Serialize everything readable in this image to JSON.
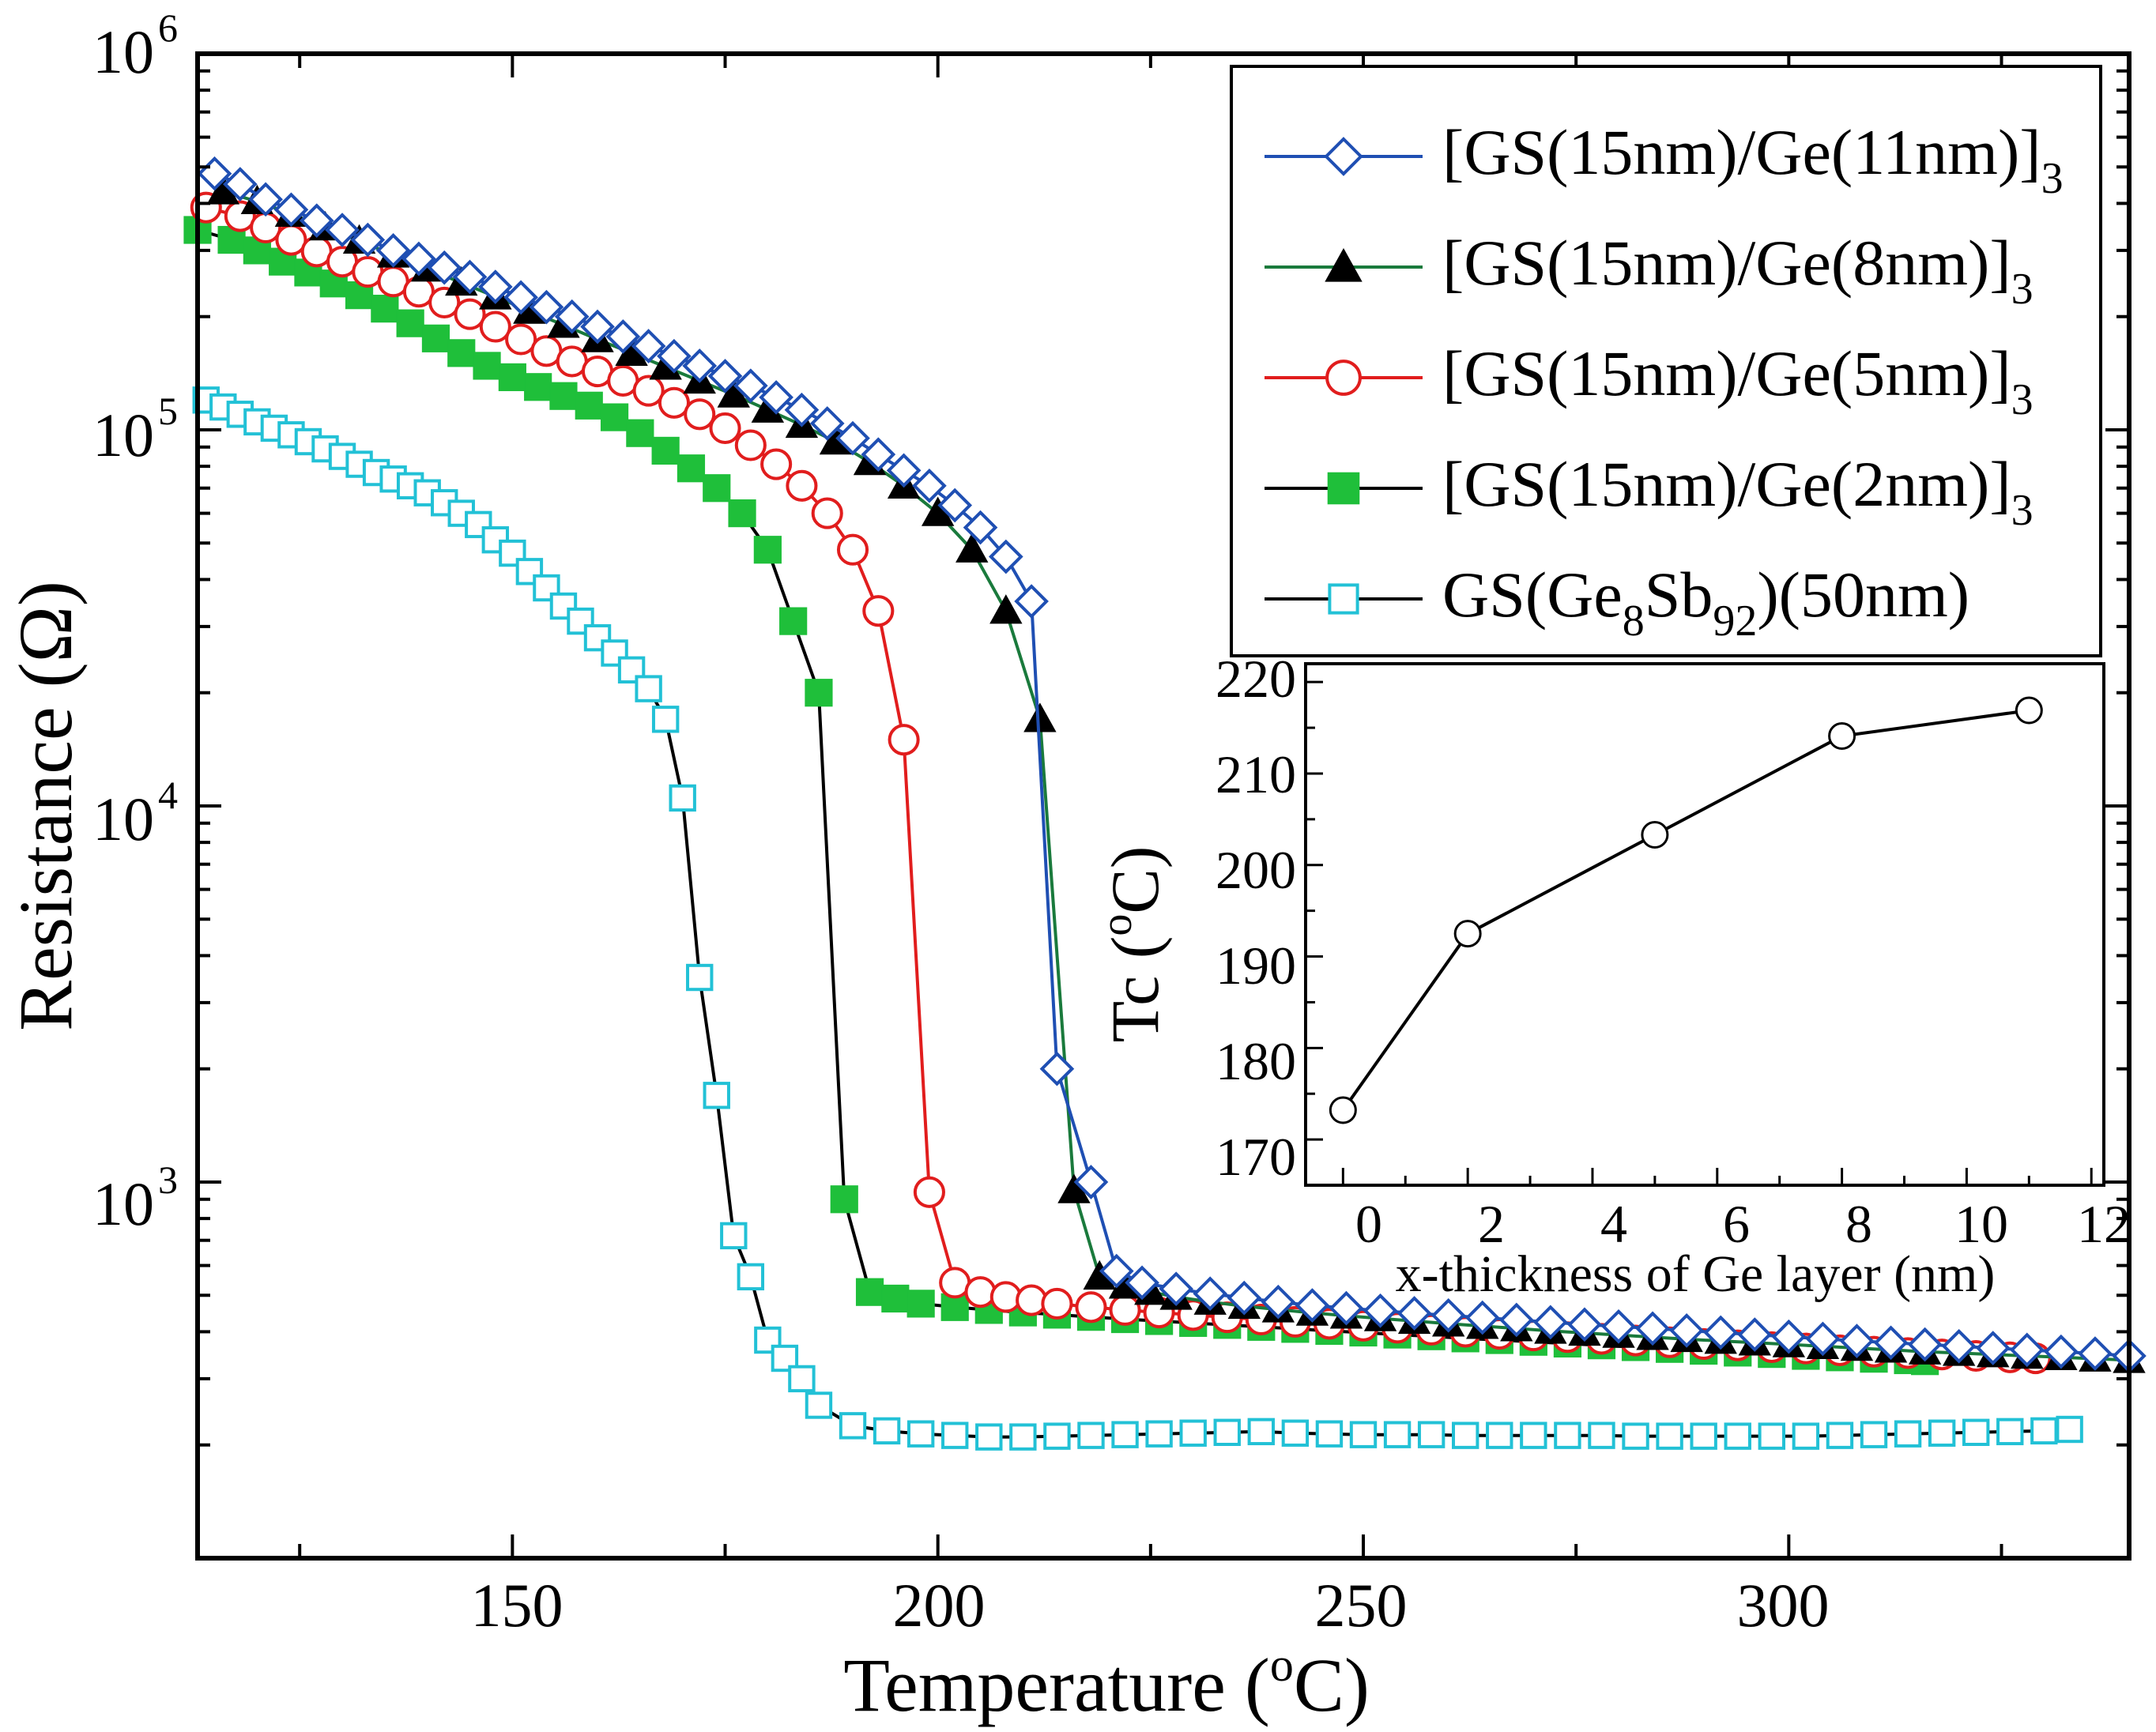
{
  "chart_data": {
    "type": "line",
    "xlabel_text": "Temperature (",
    "xlabel_sup": "o",
    "xlabel_unit": "C)",
    "ylabel": "Resistance (Ω)",
    "yscale": "log",
    "xlim": [
      113,
      340
    ],
    "ylim": [
      100,
      1000000
    ],
    "x_ticks": [
      "150",
      "200",
      "250",
      "300"
    ],
    "y_ticks": [
      {
        "base": "10",
        "exp": "3"
      },
      {
        "base": "10",
        "exp": "4"
      },
      {
        "base": "10",
        "exp": "5"
      },
      {
        "base": "10",
        "exp": "6"
      }
    ],
    "legend_position": "top-right",
    "series": [
      {
        "name": "[GS(15nm)/Ge(11nm)]3",
        "legend_main": "[GS(15nm)/Ge(11nm)]",
        "legend_sub": "3",
        "line_color": "#1f4fb3",
        "marker": "diamond-open",
        "marker_color": "#1f4fb3",
        "x": [
          115,
          118,
          121,
          124,
          127,
          130,
          133,
          136,
          139,
          142,
          145,
          148,
          151,
          154,
          157,
          160,
          163,
          166,
          169,
          172,
          175,
          178,
          181,
          184,
          187,
          190,
          193,
          196,
          199,
          202,
          205,
          208,
          211,
          214,
          218,
          221,
          224,
          228,
          232,
          236,
          240,
          244,
          248,
          252,
          256,
          260,
          264,
          268,
          272,
          276,
          280,
          284,
          288,
          292,
          296,
          300,
          304,
          308,
          312,
          316,
          320,
          324,
          328,
          332,
          336,
          340
        ],
        "y": [
          480000,
          450000,
          410000,
          385000,
          360000,
          340000,
          320000,
          300000,
          285000,
          270000,
          255000,
          240000,
          225000,
          212000,
          200000,
          188000,
          177000,
          167000,
          157000,
          148000,
          139000,
          131000,
          122000,
          113000,
          104000,
          95000,
          86000,
          78000,
          71000,
          63000,
          55000,
          46000,
          35000,
          2000,
          1000,
          580,
          540,
          520,
          505,
          492,
          480,
          470,
          462,
          455,
          448,
          442,
          436,
          430,
          424,
          418,
          413,
          408,
          403,
          398,
          393,
          388,
          383,
          378,
          374,
          370,
          366,
          362,
          358,
          354,
          350,
          345
        ]
      },
      {
        "name": "[GS(15nm)/Ge(8nm)]3",
        "legend_main": "[GS(15nm)/Ge(8nm)]",
        "legend_sub": "3",
        "line_color": "#1a7a3c",
        "marker": "triangle-filled",
        "marker_color": "#000000",
        "x": [
          116,
          120,
          124,
          128,
          132,
          136,
          140,
          144,
          148,
          152,
          156,
          160,
          164,
          168,
          172,
          176,
          180,
          184,
          188,
          192,
          196,
          200,
          204,
          208,
          212,
          216,
          219,
          222,
          225,
          228,
          232,
          236,
          240,
          244,
          248,
          252,
          256,
          260,
          264,
          268,
          272,
          276,
          280,
          284,
          288,
          292,
          296,
          300,
          304,
          308,
          312,
          316,
          320,
          324,
          328,
          332,
          336,
          340
        ],
        "y": [
          430000,
          405000,
          375000,
          345000,
          318000,
          292000,
          268000,
          246000,
          226000,
          207000,
          190000,
          174000,
          160000,
          147000,
          135000,
          124000,
          113000,
          103000,
          93000,
          82000,
          71000,
          60000,
          48000,
          33000,
          17000,
          950,
          560,
          530,
          510,
          495,
          480,
          468,
          458,
          449,
          441,
          434,
          427,
          420,
          414,
          408,
          402,
          397,
          392,
          387,
          382,
          378,
          374,
          370,
          366,
          362,
          358,
          354,
          351,
          348,
          345,
          342,
          339,
          336
        ]
      },
      {
        "name": "[GS(15nm)/Ge(5nm)]3",
        "legend_main": "[GS(15nm)/Ge(5nm)]",
        "legend_sub": "3",
        "line_color": "#e11d1d",
        "marker": "circle-open",
        "marker_color": "#e11d1d",
        "x": [
          114,
          118,
          121,
          124,
          127,
          130,
          133,
          136,
          139,
          142,
          145,
          148,
          151,
          154,
          157,
          160,
          163,
          166,
          169,
          172,
          175,
          178,
          181,
          184,
          187,
          190,
          193,
          196,
          199,
          202,
          205,
          208,
          211,
          214,
          218,
          222,
          226,
          230,
          234,
          238,
          242,
          246,
          250,
          254,
          258,
          262,
          266,
          270,
          274,
          278,
          282,
          286,
          290,
          294,
          298,
          302,
          306,
          310,
          314,
          318,
          322,
          326,
          329
        ],
        "y": [
          390000,
          370000,
          345000,
          320000,
          298000,
          280000,
          263000,
          248000,
          233000,
          218000,
          203000,
          188000,
          174000,
          162000,
          152000,
          143000,
          135000,
          127000,
          118000,
          110000,
          101000,
          91000,
          81000,
          71000,
          60000,
          48000,
          33000,
          15000,
          940,
          540,
          510,
          495,
          485,
          475,
          465,
          457,
          450,
          443,
          437,
          431,
          425,
          420,
          415,
          410,
          405,
          400,
          395,
          391,
          387,
          383,
          379,
          375,
          371,
          368,
          364,
          361,
          357,
          354,
          351,
          348,
          345,
          342,
          340
        ]
      },
      {
        "name": "[GS(15nm)/Ge(2nm)]3",
        "legend_main": "[GS(15nm)/Ge(2nm)]",
        "legend_sub": "3",
        "line_color": "#000000",
        "marker": "square-filled",
        "marker_color": "#1fbf3a",
        "x": [
          113,
          117,
          120,
          123,
          126,
          129,
          132,
          135,
          138,
          141,
          144,
          147,
          150,
          153,
          156,
          159,
          162,
          165,
          168,
          171,
          174,
          177,
          180,
          183,
          186,
          189,
          192,
          195,
          198,
          202,
          206,
          210,
          214,
          218,
          222,
          226,
          230,
          234,
          238,
          242,
          246,
          250,
          254,
          258,
          262,
          266,
          270,
          274,
          278,
          282,
          286,
          290,
          294,
          298,
          302,
          306,
          310,
          314,
          316
        ],
        "y": [
          340000,
          320000,
          300000,
          280000,
          262000,
          245000,
          228000,
          210000,
          192000,
          175000,
          160000,
          148000,
          138000,
          130000,
          123000,
          116000,
          108000,
          98000,
          88000,
          79000,
          70000,
          60000,
          48000,
          31000,
          20000,
          900,
          510,
          490,
          475,
          465,
          457,
          450,
          444,
          438,
          432,
          427,
          422,
          417,
          412,
          407,
          402,
          398,
          393,
          389,
          384,
          380,
          376,
          372,
          368,
          364,
          360,
          356,
          352,
          349,
          345,
          342,
          339,
          336,
          334
        ]
      },
      {
        "name": "GS(Ge8Sb92)(50nm)",
        "legend_prefix": "GS(Ge",
        "legend_sub1": "8",
        "legend_mid": "Sb",
        "legend_sub2": "92",
        "legend_suffix": ")(50nm)",
        "line_color": "#000000",
        "marker": "square-open",
        "marker_color": "#22c1d6",
        "x": [
          114,
          116,
          118,
          120,
          122,
          124,
          126,
          128,
          130,
          132,
          134,
          136,
          138,
          140,
          142,
          144,
          146,
          148,
          150,
          152,
          154,
          156,
          158,
          160,
          162,
          164,
          166,
          168,
          170,
          172,
          174,
          176,
          178,
          180,
          182,
          184,
          186,
          190,
          194,
          198,
          202,
          206,
          210,
          214,
          218,
          222,
          226,
          230,
          234,
          238,
          242,
          246,
          250,
          254,
          258,
          262,
          266,
          270,
          274,
          278,
          282,
          286,
          290,
          294,
          298,
          302,
          306,
          310,
          314,
          318,
          322,
          326,
          330,
          333
        ],
        "y": [
          120000,
          115000,
          110000,
          105000,
          101000,
          97000,
          93000,
          89000,
          85000,
          81000,
          77000,
          74000,
          71000,
          68000,
          64000,
          60000,
          56000,
          51000,
          47000,
          42000,
          38000,
          34000,
          31000,
          28000,
          25500,
          23000,
          20500,
          17000,
          10500,
          3500,
          1700,
          720,
          560,
          380,
          340,
          300,
          255,
          225,
          218,
          214,
          212,
          210,
          210,
          211,
          212,
          213,
          214,
          215,
          216,
          217,
          215,
          214,
          213,
          213,
          213,
          212,
          212,
          212,
          212,
          212,
          211,
          211,
          211,
          211,
          211,
          211,
          212,
          213,
          214,
          215,
          216,
          217,
          218,
          220
        ]
      }
    ]
  },
  "inset_chart": {
    "type": "line",
    "xlabel": "x-thickness of Ge layer (nm)",
    "ylabel_text": "Tc (",
    "ylabel_sup": "o",
    "ylabel_unit": "C)",
    "xlim": [
      -0.6,
      12.2
    ],
    "ylim": [
      165,
      222
    ],
    "x_ticks": [
      "0",
      "2",
      "4",
      "6",
      "8",
      "10",
      "12"
    ],
    "y_ticks": [
      "170",
      "180",
      "190",
      "200",
      "210",
      "220"
    ],
    "x": [
      0,
      2,
      5,
      8,
      11
    ],
    "y": [
      173.2,
      192.5,
      203.3,
      214.1,
      216.9
    ],
    "line_color": "#000000",
    "marker": "circle-open"
  }
}
